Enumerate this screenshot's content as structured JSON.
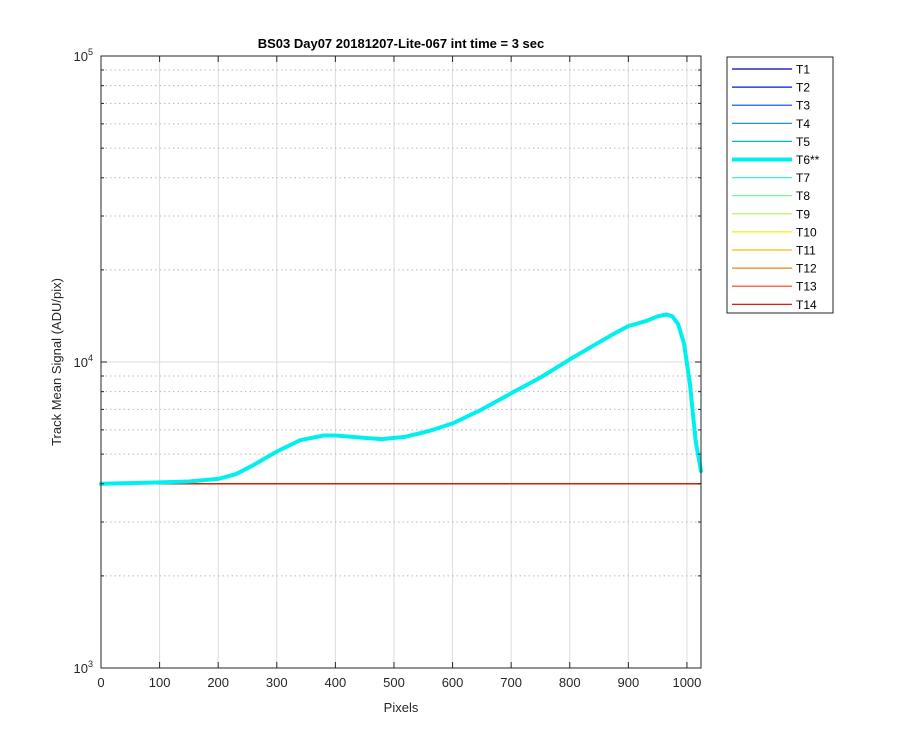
{
  "chart_data": {
    "type": "line",
    "title": "BS03 Day07 20181207-Lite-067 int time = 3 sec",
    "xlabel": "Pixels",
    "ylabel": "Track Mean Signal (ADU/pix)",
    "xlim": [
      0,
      1024
    ],
    "ylim": [
      1000,
      100000
    ],
    "yscale": "log",
    "grid": true,
    "legend_placement": "outside-right",
    "xticks": [
      0,
      100,
      200,
      300,
      400,
      500,
      600,
      700,
      800,
      900,
      1000
    ],
    "xtick_labels": [
      "0",
      "100",
      "200",
      "300",
      "400",
      "500",
      "600",
      "700",
      "800",
      "900",
      "1000"
    ],
    "yticks": [
      1000,
      10000,
      100000
    ],
    "ytick_labels": [
      {
        "base": "10",
        "exp": "3"
      },
      {
        "base": "10",
        "exp": "4"
      },
      {
        "base": "10",
        "exp": "5"
      }
    ],
    "series": [
      {
        "name": "T1",
        "color": "#0000a8",
        "width": 1.2,
        "x": [
          0,
          1024
        ],
        "y": [
          4000,
          4000
        ]
      },
      {
        "name": "T2",
        "color": "#0018d8",
        "width": 1.2,
        "x": [
          0,
          1024
        ],
        "y": [
          4000,
          4000
        ]
      },
      {
        "name": "T3",
        "color": "#0048f0",
        "width": 1.2,
        "x": [
          0,
          1024
        ],
        "y": [
          4000,
          4000
        ]
      },
      {
        "name": "T4",
        "color": "#0080f0",
        "width": 1.2,
        "x": [
          0,
          1024
        ],
        "y": [
          4000,
          4000
        ]
      },
      {
        "name": "T5",
        "color": "#00b0f0",
        "width": 1.2,
        "x": [
          0,
          1024
        ],
        "y": [
          4000,
          4000
        ]
      },
      {
        "name": "T6**",
        "color": "#00f0f0",
        "width": 4,
        "x": [
          0,
          50,
          100,
          150,
          200,
          230,
          260,
          300,
          340,
          380,
          400,
          450,
          480,
          520,
          560,
          600,
          650,
          700,
          750,
          800,
          850,
          880,
          900,
          930,
          950,
          965,
          975,
          985,
          995,
          1005,
          1015,
          1024
        ],
        "y": [
          4000,
          4020,
          4040,
          4070,
          4150,
          4300,
          4600,
          5100,
          5550,
          5750,
          5750,
          5650,
          5600,
          5700,
          5950,
          6300,
          7000,
          7900,
          8900,
          10200,
          11600,
          12500,
          13100,
          13600,
          14100,
          14300,
          14100,
          13300,
          11500,
          8500,
          5500,
          4400
        ]
      },
      {
        "name": "T7",
        "color": "#40f0c0",
        "width": 1.2,
        "x": [
          0,
          1024
        ],
        "y": [
          4000,
          4000
        ]
      },
      {
        "name": "T8",
        "color": "#70f090",
        "width": 1.2,
        "x": [
          0,
          1024
        ],
        "y": [
          4000,
          4000
        ]
      },
      {
        "name": "T9",
        "color": "#b0f050",
        "width": 1.2,
        "x": [
          0,
          1024
        ],
        "y": [
          4000,
          4000
        ]
      },
      {
        "name": "T10",
        "color": "#f0f010",
        "width": 1.2,
        "x": [
          0,
          1024
        ],
        "y": [
          4000,
          4000
        ]
      },
      {
        "name": "T11",
        "color": "#f0c010",
        "width": 1.2,
        "x": [
          0,
          1024
        ],
        "y": [
          4000,
          4000
        ]
      },
      {
        "name": "T12",
        "color": "#f08010",
        "width": 1.2,
        "x": [
          0,
          1024
        ],
        "y": [
          4000,
          4000
        ]
      },
      {
        "name": "T13",
        "color": "#f04010",
        "width": 1.2,
        "x": [
          0,
          1024
        ],
        "y": [
          4000,
          4000
        ]
      },
      {
        "name": "T14",
        "color": "#d00000",
        "width": 1.2,
        "x": [
          0,
          1024
        ],
        "y": [
          4000,
          4000
        ]
      }
    ]
  }
}
